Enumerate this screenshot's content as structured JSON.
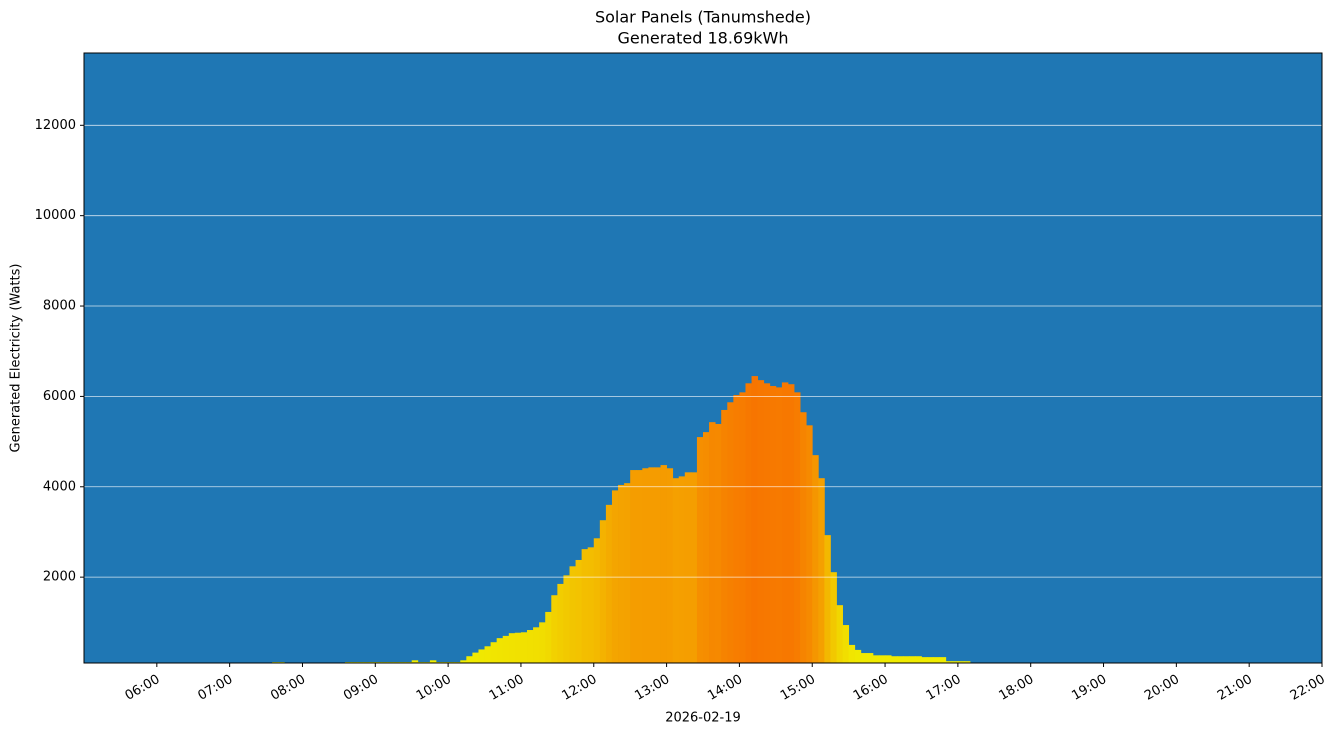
{
  "chart_data": {
    "type": "bar",
    "title": "Solar Panels (Tanumshede)",
    "subtitle": "Generated 18.69kWh",
    "xlabel": "2026-02-19",
    "ylabel": "Generated Electricity (Watts)",
    "x": [
      "07:35",
      "07:40",
      "08:35",
      "08:40",
      "08:45",
      "08:50",
      "08:55",
      "09:00",
      "09:05",
      "09:10",
      "09:15",
      "09:20",
      "09:25",
      "09:30",
      "09:35",
      "09:40",
      "09:45",
      "09:50",
      "09:55",
      "10:00",
      "10:05",
      "10:10",
      "10:15",
      "10:20",
      "10:25",
      "10:30",
      "10:35",
      "10:40",
      "10:45",
      "10:50",
      "10:55",
      "11:00",
      "11:05",
      "11:10",
      "11:15",
      "11:20",
      "11:25",
      "11:30",
      "11:35",
      "11:40",
      "11:45",
      "11:50",
      "11:55",
      "12:00",
      "12:05",
      "12:10",
      "12:15",
      "12:20",
      "12:25",
      "12:30",
      "12:35",
      "12:40",
      "12:45",
      "12:50",
      "12:55",
      "13:00",
      "13:05",
      "13:10",
      "13:15",
      "13:20",
      "13:25",
      "13:30",
      "13:35",
      "13:40",
      "13:45",
      "13:50",
      "13:55",
      "14:00",
      "14:05",
      "14:10",
      "14:15",
      "14:20",
      "14:25",
      "14:30",
      "14:35",
      "14:40",
      "14:45",
      "14:50",
      "14:55",
      "15:00",
      "15:05",
      "15:10",
      "15:15",
      "15:20",
      "15:25",
      "15:30",
      "15:35",
      "15:40",
      "15:45",
      "15:50",
      "15:55",
      "16:00",
      "16:05",
      "16:10",
      "16:15",
      "16:20",
      "16:25",
      "16:30",
      "16:35",
      "16:40",
      "16:45",
      "16:50",
      "16:55",
      "17:00",
      "17:05",
      "17:10"
    ],
    "values": [
      120,
      120,
      120,
      120,
      120,
      120,
      120,
      120,
      120,
      120,
      120,
      120,
      120,
      160,
      120,
      120,
      160,
      120,
      120,
      120,
      120,
      160,
      250,
      330,
      400,
      470,
      560,
      650,
      700,
      760,
      770,
      780,
      830,
      890,
      1000,
      1230,
      1600,
      1850,
      2040,
      2240,
      2380,
      2620,
      2660,
      2860,
      3260,
      3600,
      3920,
      4040,
      4080,
      4370,
      4370,
      4410,
      4430,
      4430,
      4480,
      4410,
      4190,
      4230,
      4320,
      4320,
      5100,
      5210,
      5430,
      5390,
      5700,
      5870,
      6030,
      6090,
      6290,
      6450,
      6360,
      6290,
      6230,
      6200,
      6310,
      6270,
      6090,
      5650,
      5360,
      4700,
      4190,
      2930,
      2110,
      1380,
      940,
      500,
      390,
      320,
      320,
      270,
      270,
      270,
      250,
      250,
      250,
      250,
      250,
      230,
      230,
      230,
      230,
      140,
      140,
      140,
      140,
      100
    ],
    "colors": [
      "#f0f000",
      "#f77500"
    ],
    "background": "#1f77b4",
    "xlim": [
      "05:00",
      "22:00"
    ],
    "xticks": [
      "06:00",
      "07:00",
      "08:00",
      "09:00",
      "10:00",
      "11:00",
      "12:00",
      "13:00",
      "14:00",
      "15:00",
      "16:00",
      "17:00",
      "18:00",
      "19:00",
      "20:00",
      "21:00",
      "22:00"
    ],
    "ylim": [
      100,
      13600
    ],
    "yticks": [
      2000,
      4000,
      6000,
      8000,
      10000,
      12000
    ],
    "grid": true
  }
}
